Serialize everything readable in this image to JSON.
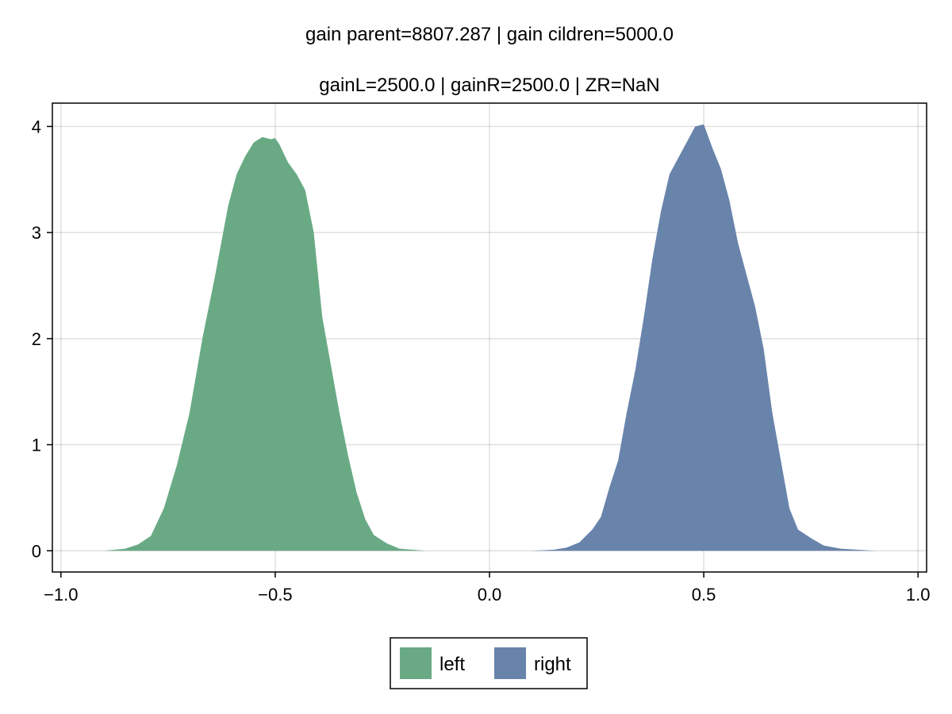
{
  "chart_data": {
    "type": "area",
    "title": "gain parent=8807.287 | gain cildren=5000.0",
    "subtitle": "gainL=2500.0 | gainR=2500.0 | ZR=NaN",
    "xlabel": "",
    "ylabel": "",
    "xlim": [
      -1.02,
      1.02
    ],
    "ylim": [
      -0.2,
      4.22
    ],
    "xticks": [
      -1.0,
      -0.5,
      0.0,
      0.5,
      1.0
    ],
    "xtick_labels": [
      "−1.0",
      "−0.5",
      "0.0",
      "0.5",
      "1.0"
    ],
    "yticks": [
      0,
      1,
      2,
      3,
      4
    ],
    "ytick_labels": [
      "0",
      "1",
      "2",
      "3",
      "4"
    ],
    "grid": true,
    "legend_position": "bottom",
    "series": [
      {
        "name": "left",
        "color": "#69aa85",
        "x": [
          -0.9,
          -0.85,
          -0.82,
          -0.79,
          -0.76,
          -0.73,
          -0.7,
          -0.67,
          -0.64,
          -0.61,
          -0.59,
          -0.57,
          -0.55,
          -0.53,
          -0.51,
          -0.5,
          -0.49,
          -0.47,
          -0.45,
          -0.43,
          -0.41,
          -0.39,
          -0.37,
          -0.35,
          -0.33,
          -0.31,
          -0.29,
          -0.27,
          -0.24,
          -0.21,
          -0.18,
          -0.15,
          -0.1
        ],
        "y": [
          0.0,
          0.02,
          0.06,
          0.14,
          0.4,
          0.8,
          1.3,
          2.0,
          2.6,
          3.25,
          3.55,
          3.72,
          3.85,
          3.9,
          3.88,
          3.89,
          3.83,
          3.66,
          3.55,
          3.4,
          3.0,
          2.2,
          1.75,
          1.3,
          0.9,
          0.55,
          0.3,
          0.15,
          0.07,
          0.02,
          0.01,
          0.0,
          0.0
        ]
      },
      {
        "name": "right",
        "color": "#6984ab",
        "x": [
          0.1,
          0.15,
          0.18,
          0.21,
          0.24,
          0.26,
          0.28,
          0.3,
          0.32,
          0.34,
          0.36,
          0.38,
          0.4,
          0.42,
          0.44,
          0.46,
          0.48,
          0.5,
          0.52,
          0.54,
          0.56,
          0.58,
          0.6,
          0.62,
          0.64,
          0.66,
          0.68,
          0.7,
          0.72,
          0.75,
          0.78,
          0.82,
          0.9
        ],
        "y": [
          0.0,
          0.01,
          0.03,
          0.08,
          0.2,
          0.32,
          0.6,
          0.85,
          1.3,
          1.7,
          2.2,
          2.75,
          3.2,
          3.55,
          3.7,
          3.85,
          4.0,
          4.02,
          3.8,
          3.6,
          3.3,
          2.9,
          2.6,
          2.3,
          1.9,
          1.3,
          0.85,
          0.4,
          0.2,
          0.12,
          0.05,
          0.02,
          0.0
        ]
      }
    ]
  }
}
